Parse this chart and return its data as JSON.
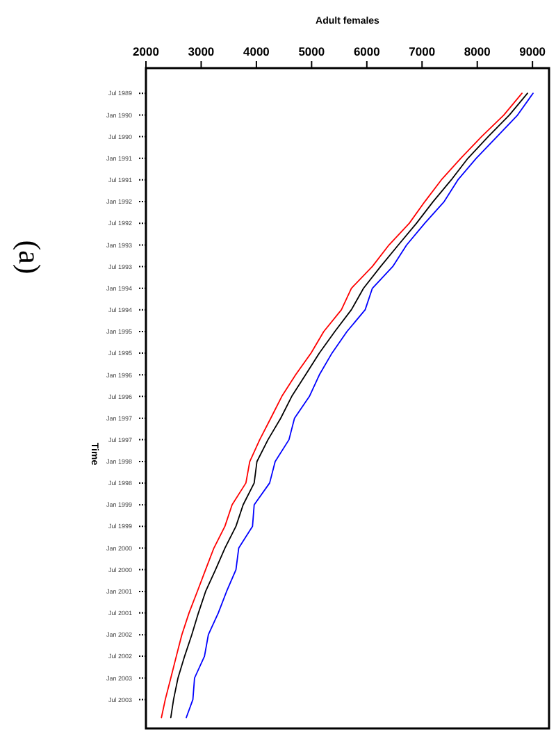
{
  "chart_data": {
    "type": "line",
    "orientation": "horizontal",
    "xlabel": "Adult females",
    "ylabel": "Time",
    "annotations": [
      "(a)"
    ],
    "x": [
      "1989-07",
      "1990-01",
      "1990-07",
      "1991-01",
      "1991-07",
      "1992-01",
      "1992-07",
      "1993-01",
      "1993-07",
      "1994-01",
      "1994-07",
      "1995-01",
      "1995-07",
      "1996-01",
      "1996-07",
      "1997-01",
      "1997-07",
      "1998-01",
      "1998-07",
      "1999-01",
      "1999-07",
      "2000-01",
      "2000-07",
      "2001-01",
      "2001-07",
      "2002-01",
      "2002-07",
      "2003-01",
      "2003-07",
      "2003-12"
    ],
    "series": [
      {
        "color": "#ff0000",
        "values": [
          8810,
          8480,
          8080,
          7700,
          7350,
          7050,
          6770,
          6400,
          6100,
          5720,
          5540,
          5220,
          4990,
          4710,
          4460,
          4260,
          4060,
          3880,
          3810,
          3560,
          3430,
          3230,
          3080,
          2930,
          2780,
          2650,
          2550,
          2450,
          2350,
          2280
        ]
      },
      {
        "color": "#000000",
        "values": [
          8910,
          8580,
          8200,
          7830,
          7530,
          7200,
          6900,
          6570,
          6250,
          5940,
          5720,
          5420,
          5140,
          4890,
          4640,
          4440,
          4210,
          4010,
          3960,
          3760,
          3630,
          3430,
          3260,
          3080,
          2950,
          2830,
          2700,
          2580,
          2500,
          2450
        ]
      },
      {
        "color": "#0000ff",
        "values": [
          9010,
          8730,
          8360,
          7980,
          7650,
          7400,
          7050,
          6720,
          6470,
          6100,
          5970,
          5640,
          5370,
          5140,
          4960,
          4690,
          4590,
          4340,
          4240,
          3960,
          3930,
          3680,
          3630,
          3460,
          3310,
          3130,
          3060,
          2880,
          2850,
          2730
        ]
      }
    ],
    "xlim": [
      2000,
      9300
    ],
    "xticks": [
      2000,
      3000,
      4000,
      5000,
      6000,
      7000,
      8000,
      9000
    ],
    "ylim": [
      "2004-03",
      "1988-12"
    ],
    "yticks": [
      {
        "value": "1989-07",
        "label": "Jul 1989"
      },
      {
        "value": "1990-01",
        "label": "Jan 1990"
      },
      {
        "value": "1990-07",
        "label": "Jul 1990"
      },
      {
        "value": "1991-01",
        "label": "Jan 1991"
      },
      {
        "value": "1991-07",
        "label": "Jul 1991"
      },
      {
        "value": "1992-01",
        "label": "Jan 1992"
      },
      {
        "value": "1992-07",
        "label": "Jul 1992"
      },
      {
        "value": "1993-01",
        "label": "Jan 1993"
      },
      {
        "value": "1993-07",
        "label": "Jul 1993"
      },
      {
        "value": "1994-01",
        "label": "Jan 1994"
      },
      {
        "value": "1994-07",
        "label": "Jul 1994"
      },
      {
        "value": "1995-01",
        "label": "Jan 1995"
      },
      {
        "value": "1995-07",
        "label": "Jul 1995"
      },
      {
        "value": "1996-01",
        "label": "Jan 1996"
      },
      {
        "value": "1996-07",
        "label": "Jul 1996"
      },
      {
        "value": "1997-01",
        "label": "Jan 1997"
      },
      {
        "value": "1997-07",
        "label": "Jul 1997"
      },
      {
        "value": "1998-01",
        "label": "Jan 1998"
      },
      {
        "value": "1998-07",
        "label": "Jul 1998"
      },
      {
        "value": "1999-01",
        "label": "Jan 1999"
      },
      {
        "value": "1999-07",
        "label": "Jul 1999"
      },
      {
        "value": "2000-01",
        "label": "Jan 2000"
      },
      {
        "value": "2000-07",
        "label": "Jul 2000"
      },
      {
        "value": "2001-01",
        "label": "Jan 2001"
      },
      {
        "value": "2001-07",
        "label": "Jul 2001"
      },
      {
        "value": "2002-01",
        "label": "Jan 2002"
      },
      {
        "value": "2002-07",
        "label": "Jul 2002"
      },
      {
        "value": "2003-01",
        "label": "Jan 2003"
      },
      {
        "value": "2003-07",
        "label": "Jul 2003"
      }
    ],
    "grid": false,
    "line_style": "solid",
    "marker": "none"
  }
}
